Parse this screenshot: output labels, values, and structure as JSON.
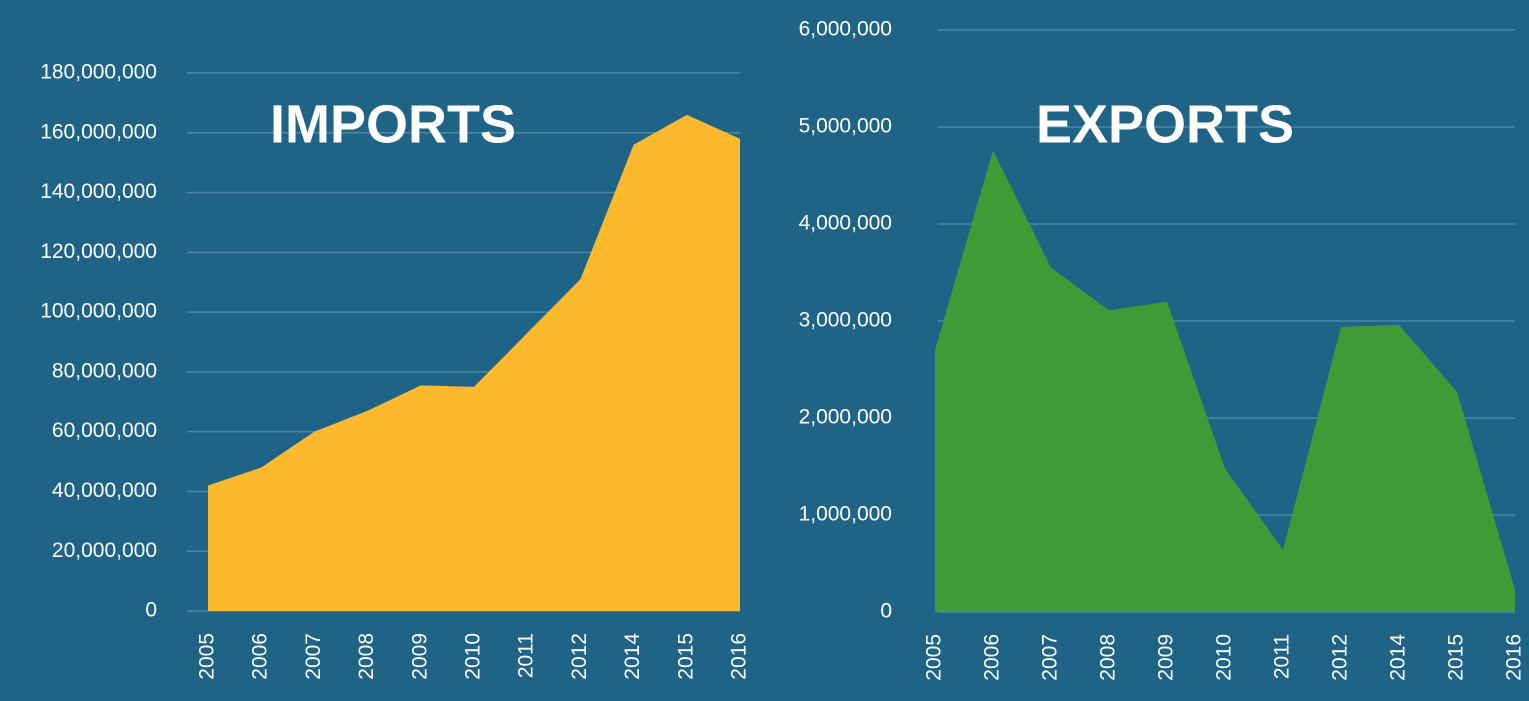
{
  "chart_data": [
    {
      "type": "area",
      "title": "IMPORTS",
      "categories": [
        "2005",
        "2006",
        "2007",
        "2008",
        "2009",
        "2010",
        "2011",
        "2012",
        "2014",
        "2015",
        "2016"
      ],
      "values": [
        42000000,
        48000000,
        60000000,
        67000000,
        75500000,
        75000000,
        93000000,
        111000000,
        156000000,
        166000000,
        158000000
      ],
      "color": "#fdb92d",
      "ylim": [
        0,
        180000000
      ],
      "yticks": [
        0,
        {
          "value": 20000000,
          "label": "20,000,000"
        },
        {
          "value": 40000000,
          "label": "40,000,000"
        },
        {
          "value": 60000000,
          "label": "60,000,000"
        },
        {
          "value": 80000000,
          "label": "80,000,000"
        },
        {
          "value": 100000000,
          "label": "100,000,000"
        },
        {
          "value": 120000000,
          "label": "120,000,000"
        },
        {
          "value": 140000000,
          "label": "140,000,000"
        },
        {
          "value": 160000000,
          "label": "160,000,000"
        },
        {
          "value": 180000000,
          "label": "180,000,000"
        }
      ],
      "grid": true
    },
    {
      "type": "area",
      "title": "EXPORTS",
      "categories": [
        "2005",
        "2006",
        "2007",
        "2008",
        "2009",
        "2010",
        "2011",
        "2012",
        "2014",
        "2015",
        "2016"
      ],
      "values": [
        2700000,
        4760000,
        3550000,
        3110000,
        3200000,
        1480000,
        640000,
        2940000,
        2960000,
        2270000,
        230000
      ],
      "color": "#3e9b35",
      "ylim": [
        0,
        6000000
      ],
      "yticks": [
        0,
        {
          "value": 1000000,
          "label": "1,000,000"
        },
        {
          "value": 2000000,
          "label": "2,000,000"
        },
        {
          "value": 3000000,
          "label": "3,000,000"
        },
        {
          "value": 4000000,
          "label": "4,000,000"
        },
        {
          "value": 5000000,
          "label": "5,000,000"
        },
        {
          "value": 6000000,
          "label": "6,000,000"
        }
      ],
      "grid": true
    }
  ]
}
